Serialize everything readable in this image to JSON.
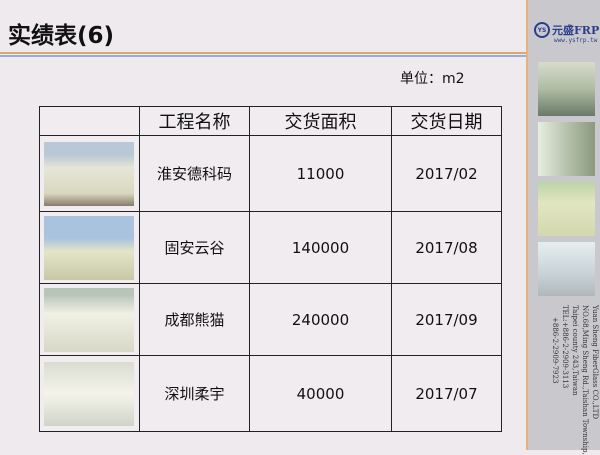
{
  "title": "实绩表(6)",
  "unit": "单位：m2",
  "logo": {
    "brand": "元盛FRP",
    "mark": "YS",
    "url": "www.ysfrp.tw"
  },
  "address": [
    "Yuan Sheng FiberGlass CO.,LTD",
    "NO.68,Ming Sheng Rd.,Taishan Township,",
    "Taipei county 243,Taiwan",
    "TEL:+886-2-2909-3113",
    "+886-2-2909-7923"
  ],
  "table": {
    "headers": [
      "",
      "工程名称",
      "交货面积",
      "交货日期"
    ],
    "rows": [
      {
        "name": "淮安德科码",
        "area": "11000",
        "date": "2017/02"
      },
      {
        "name": "固安云谷",
        "area": "140000",
        "date": "2017/08"
      },
      {
        "name": "成都熊猫",
        "area": "240000",
        "date": "2017/09"
      },
      {
        "name": "深圳柔宇",
        "area": "40000",
        "date": "2017/07"
      }
    ]
  },
  "colors": {
    "accent_orange": "#e0a868",
    "accent_blue": "#8fb0e0",
    "brand": "#2a3f8a"
  }
}
